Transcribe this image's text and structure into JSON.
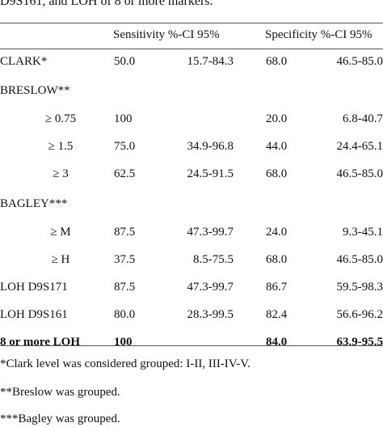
{
  "caption": "D9S161, and LOH of 8 or more markers.",
  "header": {
    "sensitivity": "Sensitivity %-CI 95%",
    "specificity": "Specificity %-CI 95%"
  },
  "rows": [
    {
      "label": "CLARK*",
      "sens": "50.0",
      "sens_ci": "15.7-84.3",
      "spec": "68.0",
      "spec_ci": "46.5-85.0"
    },
    {
      "label": "BRESLOW**",
      "sens": "",
      "sens_ci": "",
      "spec": "",
      "spec_ci": ""
    },
    {
      "label": "≥ 0.75",
      "sens": "100",
      "sens_ci": "",
      "spec": "20.0",
      "spec_ci": "6.8-40.7"
    },
    {
      "label": "≥ 1.5",
      "sens": "75.0",
      "sens_ci": "34.9-96.8",
      "spec": "44.0",
      "spec_ci": "24.4-65.1"
    },
    {
      "label": "≥ 3",
      "sens": "62.5",
      "sens_ci": "24.5-91.5",
      "spec": "68.0",
      "spec_ci": "46.5-85.0"
    },
    {
      "label": "BAGLEY***",
      "sens": "",
      "sens_ci": "",
      "spec": "",
      "spec_ci": ""
    },
    {
      "label": "≥ M",
      "sens": "87.5",
      "sens_ci": "47.3-99.7",
      "spec": "24.0",
      "spec_ci": "9.3-45.1"
    },
    {
      "label": "≥ H",
      "sens": "37.5",
      "sens_ci": "8.5-75.5",
      "spec": "68.0",
      "spec_ci": "46.5-85.0"
    },
    {
      "label": "LOH D9S171",
      "sens": "87.5",
      "sens_ci": "47.3-99.7",
      "spec": "86.7",
      "spec_ci": "59.5-98.3"
    },
    {
      "label": "LOH D9S161",
      "sens": "80.0",
      "sens_ci": "28.3-99.5",
      "spec": "82.4",
      "spec_ci": "56.6-96.2"
    },
    {
      "label": "8 or more LOH",
      "sens": "100",
      "sens_ci": "",
      "spec": "84.0",
      "spec_ci": "63.9-95.5"
    }
  ],
  "footnotes": [
    "*Clark level was considered grouped: I-II, III-IV-V.",
    "**Breslow was grouped.",
    "***Bagley was grouped."
  ]
}
